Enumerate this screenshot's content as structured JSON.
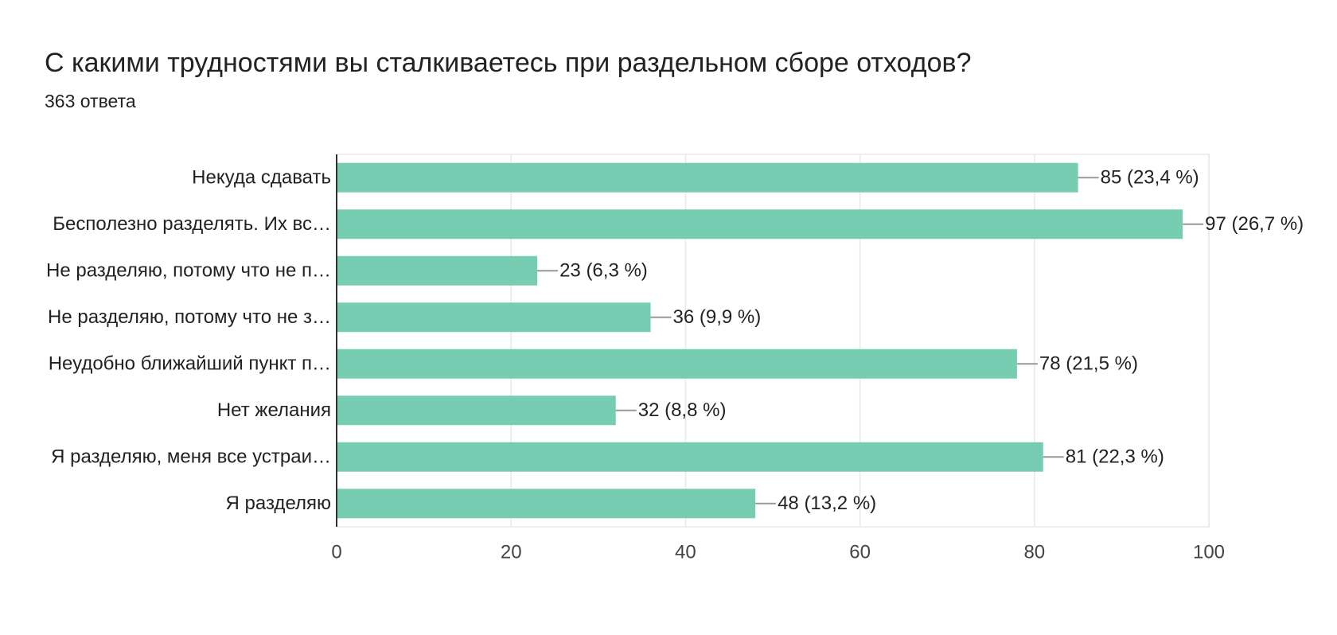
{
  "chart_data": {
    "type": "bar",
    "orientation": "horizontal",
    "title": "С какими трудностями вы сталкиваетесь при раздельном сборе отходов?",
    "subtitle": "363 ответа",
    "categories": [
      "Некуда сдавать",
      "Бесполезно разделять. Их вс…",
      "Не разделяю, потому что не п…",
      "Не разделяю, потому что не з…",
      "Неудобно ближайший пункт п…",
      "Нет желания",
      "Я разделяю, меня все устраи…",
      "Я разделяю"
    ],
    "values": [
      85,
      97,
      23,
      36,
      78,
      32,
      81,
      48
    ],
    "value_labels": [
      "85 (23,4 %)",
      "97 (26,7 %)",
      "23 (6,3 %)",
      "36 (9,9 %)",
      "78 (21,5 %)",
      "32 (8,8 %)",
      "81 (22,3 %)",
      "48 (13,2 %)"
    ],
    "color": "#76cdb2",
    "xlim": [
      0,
      100
    ],
    "xticks": [
      0,
      20,
      40,
      60,
      80,
      100
    ],
    "grid": true
  }
}
